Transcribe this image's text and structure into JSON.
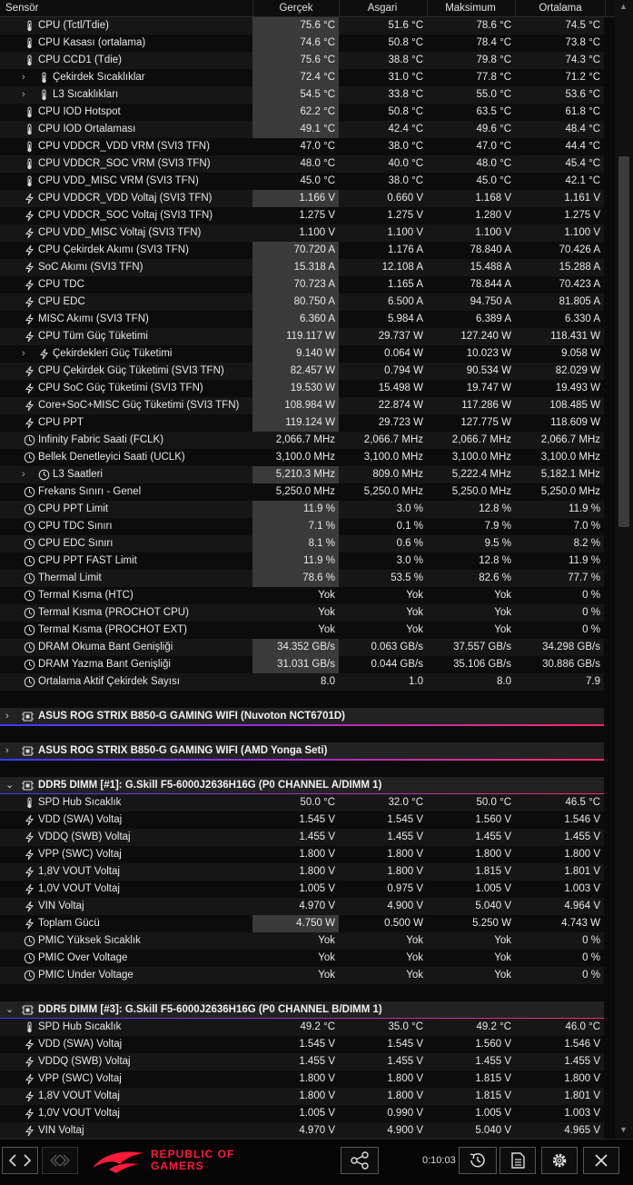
{
  "columns": {
    "sensor": "Sensör",
    "current": "Gerçek",
    "min": "Asgari",
    "max": "Maksimum",
    "avg": "Ortalama"
  },
  "cpu_rows": [
    {
      "icon": "thermometer-icon",
      "name": "CPU (Tctl/Tdie)",
      "cur": "75.6 °C",
      "min": "51.6 °C",
      "max": "78.6 °C",
      "avg": "74.5 °C",
      "hl": true
    },
    {
      "icon": "thermometer-icon",
      "name": "CPU Kasası (ortalama)",
      "cur": "74.6 °C",
      "min": "50.8 °C",
      "max": "78.4 °C",
      "avg": "73.8 °C",
      "hl": true
    },
    {
      "icon": "thermometer-icon",
      "name": "CPU CCD1 (Tdie)",
      "cur": "75.6 °C",
      "min": "38.8 °C",
      "max": "79.8 °C",
      "avg": "74.3 °C",
      "hl": true
    },
    {
      "icon": "thermometer-icon",
      "name": "Çekirdek Sıcaklıklar",
      "cur": "72.4 °C",
      "min": "31.0 °C",
      "max": "77.8 °C",
      "avg": "71.2 °C",
      "hl": true,
      "sub": true
    },
    {
      "icon": "thermometer-icon",
      "name": "L3 Sıcaklıkları",
      "cur": "54.5 °C",
      "min": "33.8 °C",
      "max": "55.0 °C",
      "avg": "53.6 °C",
      "hl": true,
      "sub": true
    },
    {
      "icon": "thermometer-icon",
      "name": "CPU IOD Hotspot",
      "cur": "62.2 °C",
      "min": "50.8 °C",
      "max": "63.5 °C",
      "avg": "61.8 °C",
      "hl": true
    },
    {
      "icon": "thermometer-icon",
      "name": "CPU IOD Ortalaması",
      "cur": "49.1 °C",
      "min": "42.4 °C",
      "max": "49.6 °C",
      "avg": "48.4 °C",
      "hl": true
    },
    {
      "icon": "thermometer-icon",
      "name": "CPU VDDCR_VDD VRM (SVI3 TFN)",
      "cur": "47.0 °C",
      "min": "38.0 °C",
      "max": "47.0 °C",
      "avg": "44.4 °C"
    },
    {
      "icon": "thermometer-icon",
      "name": "CPU VDDCR_SOC VRM (SVI3 TFN)",
      "cur": "48.0 °C",
      "min": "40.0 °C",
      "max": "48.0 °C",
      "avg": "45.4 °C"
    },
    {
      "icon": "thermometer-icon",
      "name": "CPU VDD_MISC VRM (SVI3 TFN)",
      "cur": "45.0 °C",
      "min": "38.0 °C",
      "max": "45.0 °C",
      "avg": "42.1 °C"
    },
    {
      "icon": "bolt-icon",
      "name": "CPU VDDCR_VDD Voltaj (SVI3 TFN)",
      "cur": "1.166 V",
      "min": "0.660 V",
      "max": "1.168 V",
      "avg": "1.161 V",
      "hl": true
    },
    {
      "icon": "bolt-icon",
      "name": "CPU VDDCR_SOC Voltaj (SVI3 TFN)",
      "cur": "1.275 V",
      "min": "1.275 V",
      "max": "1.280 V",
      "avg": "1.275 V"
    },
    {
      "icon": "bolt-icon",
      "name": "CPU VDD_MISC Voltaj (SVI3 TFN)",
      "cur": "1.100 V",
      "min": "1.100 V",
      "max": "1.100 V",
      "avg": "1.100 V"
    },
    {
      "icon": "bolt-icon",
      "name": "CPU Çekirdek Akımı (SVI3 TFN)",
      "cur": "70.720 A",
      "min": "1.176 A",
      "max": "78.840 A",
      "avg": "70.426 A",
      "hl": true
    },
    {
      "icon": "bolt-icon",
      "name": "SoC Akımı (SVI3 TFN)",
      "cur": "15.318 A",
      "min": "12.108 A",
      "max": "15.488 A",
      "avg": "15.288 A",
      "hl": true
    },
    {
      "icon": "bolt-icon",
      "name": "CPU TDC",
      "cur": "70.723 A",
      "min": "1.165 A",
      "max": "78.844 A",
      "avg": "70.423 A",
      "hl": true
    },
    {
      "icon": "bolt-icon",
      "name": "CPU EDC",
      "cur": "80.750 A",
      "min": "6.500 A",
      "max": "94.750 A",
      "avg": "81.805 A",
      "hl": true
    },
    {
      "icon": "bolt-icon",
      "name": "MISC Akımı (SVI3 TFN)",
      "cur": "6.360 A",
      "min": "5.984 A",
      "max": "6.389 A",
      "avg": "6.330 A",
      "hl": true
    },
    {
      "icon": "bolt-icon",
      "name": "CPU Tüm Güç Tüketimi",
      "cur": "119.117 W",
      "min": "29.737 W",
      "max": "127.240 W",
      "avg": "118.431 W",
      "hl": true
    },
    {
      "icon": "bolt-icon",
      "name": "Çekirdekleri Güç Tüketimi",
      "cur": "9.140 W",
      "min": "0.064 W",
      "max": "10.023 W",
      "avg": "9.058 W",
      "hl": true,
      "sub": true
    },
    {
      "icon": "bolt-icon",
      "name": "CPU Çekirdek Güç Tüketimi (SVI3 TFN)",
      "cur": "82.457 W",
      "min": "0.794 W",
      "max": "90.534 W",
      "avg": "82.029 W",
      "hl": true
    },
    {
      "icon": "bolt-icon",
      "name": "CPU SoC Güç Tüketimi (SVI3 TFN)",
      "cur": "19.530 W",
      "min": "15.498 W",
      "max": "19.747 W",
      "avg": "19.493 W",
      "hl": true
    },
    {
      "icon": "bolt-icon",
      "name": "Core+SoC+MISC Güç Tüketimi (SVI3 TFN)",
      "cur": "108.984 W",
      "min": "22.874 W",
      "max": "117.286 W",
      "avg": "108.485 W",
      "hl": true
    },
    {
      "icon": "bolt-icon",
      "name": "CPU PPT",
      "cur": "119.124 W",
      "min": "29.723 W",
      "max": "127.775 W",
      "avg": "118.609 W",
      "hl": true
    },
    {
      "icon": "clock-icon",
      "name": "Infinity Fabric Saati (FCLK)",
      "cur": "2,066.7 MHz",
      "min": "2,066.7 MHz",
      "max": "2,066.7 MHz",
      "avg": "2,066.7 MHz"
    },
    {
      "icon": "clock-icon",
      "name": "Bellek Denetleyici Saati (UCLK)",
      "cur": "3,100.0 MHz",
      "min": "3,100.0 MHz",
      "max": "3,100.0 MHz",
      "avg": "3,100.0 MHz"
    },
    {
      "icon": "clock-icon",
      "name": "L3 Saatleri",
      "cur": "5,210.3 MHz",
      "min": "809.0 MHz",
      "max": "5,222.4 MHz",
      "avg": "5,182.1 MHz",
      "hl": true,
      "sub": true
    },
    {
      "icon": "clock-icon",
      "name": "Frekans Sınırı - Genel",
      "cur": "5,250.0 MHz",
      "min": "5,250.0 MHz",
      "max": "5,250.0 MHz",
      "avg": "5,250.0 MHz"
    },
    {
      "icon": "clock-icon",
      "name": "CPU PPT Limit",
      "cur": "11.9 %",
      "min": "3.0 %",
      "max": "12.8 %",
      "avg": "11.9 %",
      "hl": true
    },
    {
      "icon": "clock-icon",
      "name": "CPU TDC Sınırı",
      "cur": "7.1 %",
      "min": "0.1 %",
      "max": "7.9 %",
      "avg": "7.0 %",
      "hl": true
    },
    {
      "icon": "clock-icon",
      "name": "CPU EDC Sınırı",
      "cur": "8.1 %",
      "min": "0.6 %",
      "max": "9.5 %",
      "avg": "8.2 %",
      "hl": true
    },
    {
      "icon": "clock-icon",
      "name": "CPU PPT FAST Limit",
      "cur": "11.9 %",
      "min": "3.0 %",
      "max": "12.8 %",
      "avg": "11.9 %",
      "hl": true
    },
    {
      "icon": "clock-icon",
      "name": "Thermal Limit",
      "cur": "78.6 %",
      "min": "53.5 %",
      "max": "82.6 %",
      "avg": "77.7 %",
      "hl": true
    },
    {
      "icon": "clock-icon",
      "name": "Termal Kısma (HTC)",
      "cur": "Yok",
      "min": "Yok",
      "max": "Yok",
      "avg": "0 %"
    },
    {
      "icon": "clock-icon",
      "name": "Termal Kısma (PROCHOT CPU)",
      "cur": "Yok",
      "min": "Yok",
      "max": "Yok",
      "avg": "0 %"
    },
    {
      "icon": "clock-icon",
      "name": "Termal Kısma (PROCHOT EXT)",
      "cur": "Yok",
      "min": "Yok",
      "max": "Yok",
      "avg": "0 %"
    },
    {
      "icon": "clock-icon",
      "name": "DRAM Okuma Bant Genişliği",
      "cur": "34.352 GB/s",
      "min": "0.063 GB/s",
      "max": "37.557 GB/s",
      "avg": "34.298 GB/s",
      "hl": true
    },
    {
      "icon": "clock-icon",
      "name": "DRAM Yazma Bant Genişliği",
      "cur": "31.031 GB/s",
      "min": "0.044 GB/s",
      "max": "35.106 GB/s",
      "avg": "30.886 GB/s",
      "hl": true
    },
    {
      "icon": "clock-icon",
      "name": "Ortalama Aktif Çekirdek Sayısı",
      "cur": "8.0",
      "min": "1.0",
      "max": "8.0",
      "avg": "7.9"
    }
  ],
  "groups": [
    {
      "arrow": "›",
      "name": "ASUS ROG STRIX B850-G GAMING WIFI (Nuvoton NCT6701D)"
    },
    {
      "arrow": "›",
      "name": "ASUS ROG STRIX B850-G GAMING WIFI (AMD Yonga Seti)"
    },
    {
      "arrow": "⌄",
      "name": "DDR5 DIMM [#1]: G.Skill F5-6000J2636H16G (P0 CHANNEL A/DIMM 1)"
    },
    {
      "arrow": "⌄",
      "name": "DDR5 DIMM [#3]: G.Skill F5-6000J2636H16G (P0 CHANNEL B/DIMM 1)"
    }
  ],
  "dimm1_rows": [
    {
      "icon": "thermometer-icon",
      "name": "SPD Hub Sıcaklık",
      "cur": "50.0 °C",
      "min": "32.0 °C",
      "max": "50.0 °C",
      "avg": "46.5 °C"
    },
    {
      "icon": "bolt-icon",
      "name": "VDD (SWA) Voltaj",
      "cur": "1.545 V",
      "min": "1.545 V",
      "max": "1.560 V",
      "avg": "1.546 V"
    },
    {
      "icon": "bolt-icon",
      "name": "VDDQ (SWB) Voltaj",
      "cur": "1.455 V",
      "min": "1.455 V",
      "max": "1.455 V",
      "avg": "1.455 V"
    },
    {
      "icon": "bolt-icon",
      "name": "VPP (SWC) Voltaj",
      "cur": "1.800 V",
      "min": "1.800 V",
      "max": "1.800 V",
      "avg": "1.800 V"
    },
    {
      "icon": "bolt-icon",
      "name": "1,8V VOUT Voltaj",
      "cur": "1.800 V",
      "min": "1.800 V",
      "max": "1.815 V",
      "avg": "1.801 V"
    },
    {
      "icon": "bolt-icon",
      "name": "1,0V VOUT Voltaj",
      "cur": "1.005 V",
      "min": "0.975 V",
      "max": "1.005 V",
      "avg": "1.003 V"
    },
    {
      "icon": "bolt-icon",
      "name": "VIN Voltaj",
      "cur": "4.970 V",
      "min": "4.900 V",
      "max": "5.040 V",
      "avg": "4.964 V"
    },
    {
      "icon": "bolt-icon",
      "name": "Toplam Gücü",
      "cur": "4.750 W",
      "min": "0.500 W",
      "max": "5.250 W",
      "avg": "4.743 W",
      "hl": true
    },
    {
      "icon": "clock-icon",
      "name": "PMIC Yüksek Sıcaklık",
      "cur": "Yok",
      "min": "Yok",
      "max": "Yok",
      "avg": "0 %"
    },
    {
      "icon": "clock-icon",
      "name": "PMIC Over Voltage",
      "cur": "Yok",
      "min": "Yok",
      "max": "Yok",
      "avg": "0 %"
    },
    {
      "icon": "clock-icon",
      "name": "PMIC Under Voltage",
      "cur": "Yok",
      "min": "Yok",
      "max": "Yok",
      "avg": "0 %"
    }
  ],
  "dimm3_rows": [
    {
      "icon": "thermometer-icon",
      "name": "SPD Hub Sıcaklık",
      "cur": "49.2 °C",
      "min": "35.0 °C",
      "max": "49.2 °C",
      "avg": "46.0 °C"
    },
    {
      "icon": "bolt-icon",
      "name": "VDD (SWA) Voltaj",
      "cur": "1.545 V",
      "min": "1.545 V",
      "max": "1.560 V",
      "avg": "1.546 V"
    },
    {
      "icon": "bolt-icon",
      "name": "VDDQ (SWB) Voltaj",
      "cur": "1.455 V",
      "min": "1.455 V",
      "max": "1.455 V",
      "avg": "1.455 V"
    },
    {
      "icon": "bolt-icon",
      "name": "VPP (SWC) Voltaj",
      "cur": "1.800 V",
      "min": "1.800 V",
      "max": "1.815 V",
      "avg": "1.800 V"
    },
    {
      "icon": "bolt-icon",
      "name": "1,8V VOUT Voltaj",
      "cur": "1.800 V",
      "min": "1.800 V",
      "max": "1.815 V",
      "avg": "1.801 V"
    },
    {
      "icon": "bolt-icon",
      "name": "1,0V VOUT Voltaj",
      "cur": "1.005 V",
      "min": "0.990 V",
      "max": "1.005 V",
      "avg": "1.003 V"
    },
    {
      "icon": "bolt-icon",
      "name": "VIN Voltaj",
      "cur": "4.970 V",
      "min": "4.900 V",
      "max": "5.040 V",
      "avg": "4.965 V"
    }
  ],
  "footer": {
    "brand_line1": "REPUBLIC OF",
    "brand_line2": "GAMERS",
    "timer": "0:10:03"
  },
  "colors": {
    "accent": "#ff1a3a",
    "highlight_cell": "#3a3a3a"
  }
}
